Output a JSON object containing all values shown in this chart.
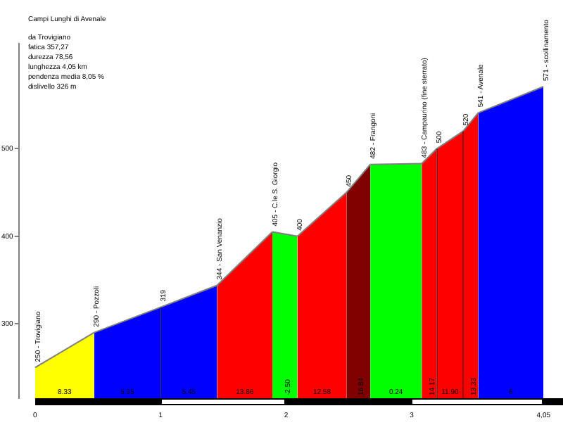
{
  "chart_data": {
    "type": "area",
    "title": "Campi Lunghi di Avenale",
    "subtitle": "da Trovigiano\nfatica 357,27\ndurezza 78,56\nlunghezza 4,05 km\npendenza media 8,05 %\ndislivello 326 m",
    "annotations": [
      "8.33",
      "5.35",
      "5.45",
      "13.86",
      "-2.50",
      "12.58",
      "16.84",
      "0.24",
      "14.17",
      "11.90",
      "13.33",
      "6",
      {
        "text": "250 - Trovigiano",
        "x": 0,
        "y": 250
      },
      {
        "text": "290 - Pozzoli",
        "x": 0.47,
        "y": 290
      },
      {
        "text": "319",
        "x": 1.0,
        "y": 319
      },
      {
        "text": "344 - San Venanzio",
        "x": 1.45,
        "y": 344
      },
      {
        "text": "405 - C.le S. Giorgio",
        "x": 1.89,
        "y": 405
      },
      {
        "text": "400",
        "x": 2.09,
        "y": 400
      },
      {
        "text": "450",
        "x": 2.48,
        "y": 450
      },
      {
        "text": "482 - Frangoni",
        "x": 2.67,
        "y": 482
      },
      {
        "text": "483 - Campaurino (fine sterrato)",
        "x": 3.08,
        "y": 483
      },
      {
        "text": "500",
        "x": 3.2,
        "y": 500
      },
      {
        "text": "520",
        "x": 3.41,
        "y": 520
      },
      {
        "text": "541 - Avenale",
        "x": 3.53,
        "y": 541
      },
      {
        "text": "571 - scollinamento",
        "x": 4.05,
        "y": 571
      }
    ],
    "series": [
      {
        "color": "#ffff00",
        "x": [
          0,
          0.47
        ],
        "values": [
          250,
          290
        ]
      },
      {
        "color": "#0000ff",
        "x": [
          0.47,
          1.0
        ],
        "values": [
          290,
          319
        ]
      },
      {
        "color": "#0000ff",
        "x": [
          1.0,
          1.45
        ],
        "values": [
          319,
          344
        ]
      },
      {
        "color": "#ff0000",
        "x": [
          1.45,
          1.89
        ],
        "values": [
          344,
          405
        ]
      },
      {
        "color": "#00ff00",
        "x": [
          1.89,
          2.09
        ],
        "values": [
          405,
          400
        ]
      },
      {
        "color": "#ff0000",
        "x": [
          2.09,
          2.48
        ],
        "values": [
          400,
          450
        ]
      },
      {
        "color": "#800000",
        "x": [
          2.48,
          2.67
        ],
        "values": [
          450,
          482
        ]
      },
      {
        "color": "#00ff00",
        "x": [
          2.67,
          3.08
        ],
        "values": [
          482,
          483
        ]
      },
      {
        "color": "#ff0000",
        "x": [
          3.08,
          3.2
        ],
        "values": [
          483,
          500
        ]
      },
      {
        "color": "#ff0000",
        "x": [
          3.2,
          3.41
        ],
        "values": [
          500,
          520
        ]
      },
      {
        "color": "#ff0000",
        "x": [
          3.41,
          3.53
        ],
        "values": [
          520,
          541
        ]
      },
      {
        "color": "#0000ff",
        "x": [
          3.53,
          4.05
        ],
        "values": [
          541,
          571
        ]
      }
    ],
    "xlim": [
      -0.13,
      4.05
    ],
    "xticks": [
      0,
      1,
      2,
      3,
      {
        "value": 4.05,
        "label": "4,05"
      }
    ],
    "ylim": [
      215,
      620
    ],
    "yticks": [
      300,
      400,
      500
    ],
    "grid": false,
    "legend": false
  }
}
